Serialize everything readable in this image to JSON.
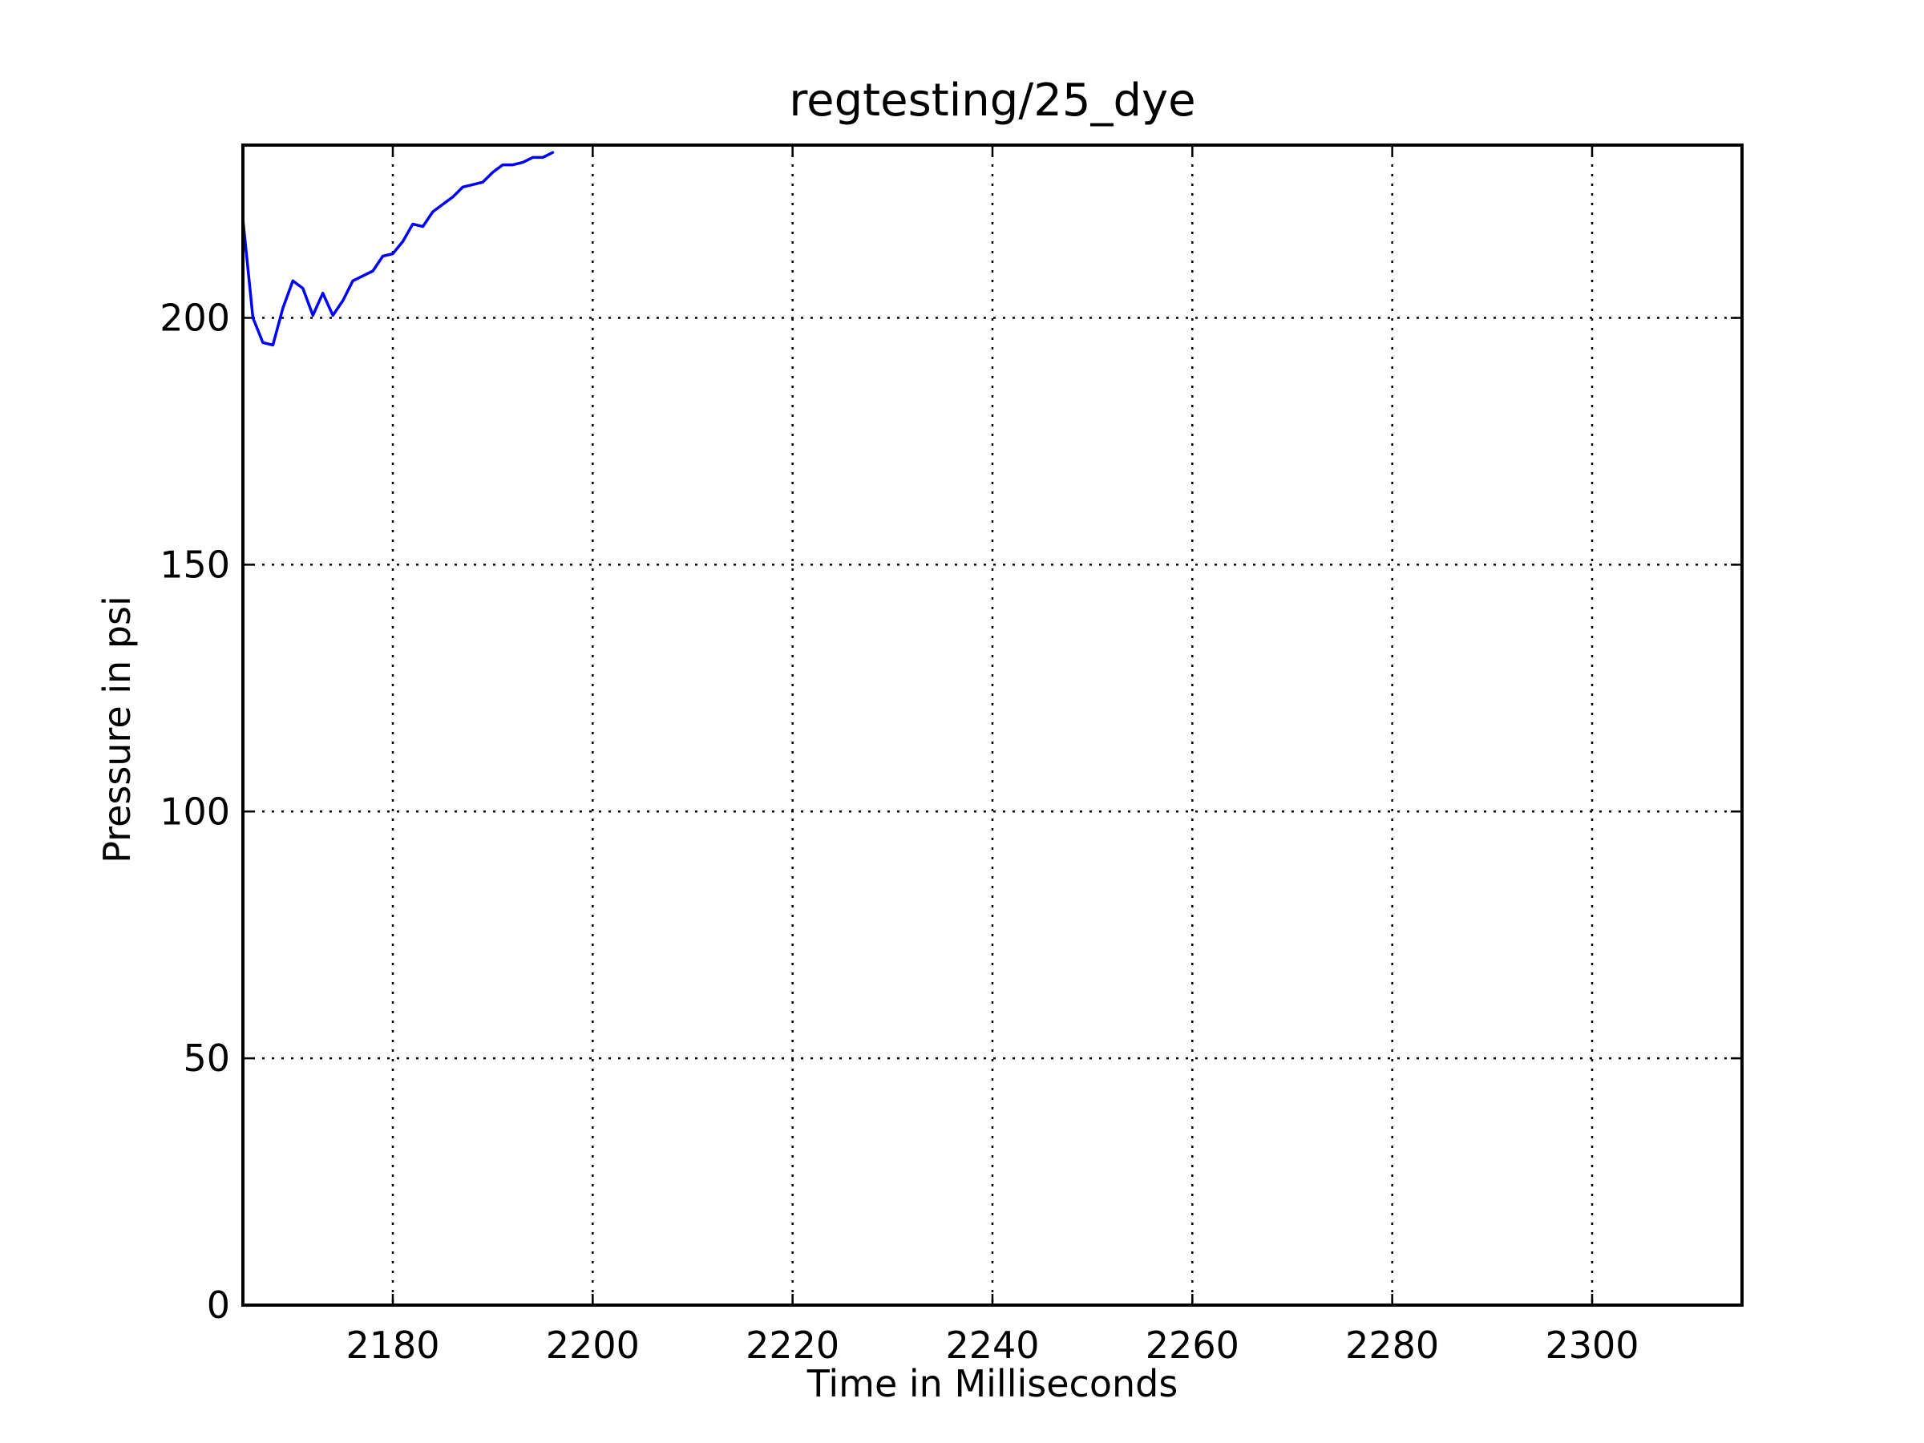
{
  "chart_data": {
    "type": "line",
    "title": "regtesting/25_dye",
    "xlabel": "Time in Milliseconds",
    "ylabel": "Pressure in psi",
    "xlim": [
      2165,
      2315
    ],
    "ylim": [
      0,
      235
    ],
    "xticks": [
      2180,
      2200,
      2220,
      2240,
      2260,
      2280,
      2300
    ],
    "yticks": [
      0,
      50,
      100,
      150,
      200
    ],
    "grid": true,
    "legend": "none",
    "series": [
      {
        "color": "#0000ff",
        "x": [
          2165,
          2166,
          2167,
          2168,
          2169,
          2170,
          2171,
          2172,
          2173,
          2174,
          2175,
          2176,
          2177,
          2178,
          2179,
          2180,
          2181,
          2182,
          2183,
          2184,
          2185,
          2186,
          2187,
          2188,
          2189,
          2190,
          2191,
          2192,
          2193,
          2194,
          2195,
          2196
        ],
        "y": [
          220,
          200,
          195,
          194.5,
          202,
          207.5,
          206,
          200.5,
          205,
          200.5,
          203.5,
          207.5,
          208.5,
          209.5,
          212.5,
          213,
          215.5,
          219,
          218.5,
          221.5,
          223,
          224.5,
          226.5,
          227,
          227.5,
          229.5,
          231,
          231,
          231.5,
          232.5,
          232.5,
          233.5
        ]
      }
    ]
  }
}
